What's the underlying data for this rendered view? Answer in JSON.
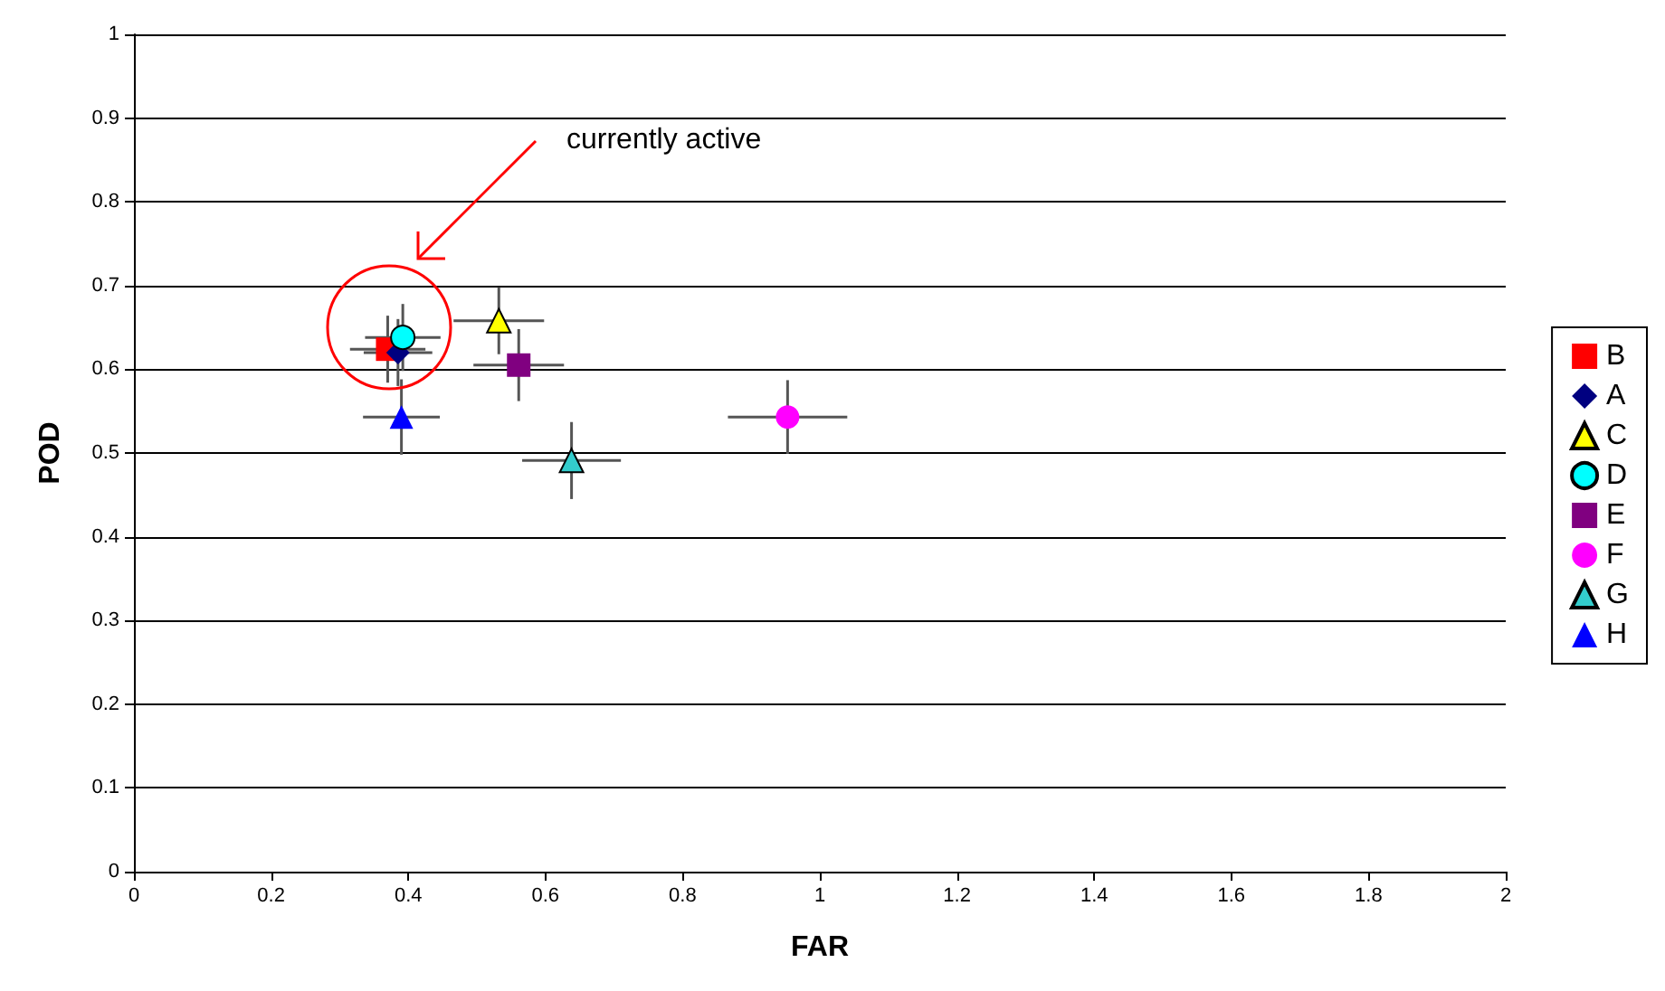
{
  "chart_data": {
    "type": "scatter",
    "xlabel": "FAR",
    "ylabel": "POD",
    "xlim": [
      0,
      2
    ],
    "ylim": [
      0,
      1
    ],
    "xticks": [
      0,
      0.2,
      0.4,
      0.6,
      0.8,
      1,
      1.2,
      1.4,
      1.6,
      1.8,
      2
    ],
    "yticks": [
      0,
      0.1,
      0.2,
      0.3,
      0.4,
      0.5,
      0.6,
      0.7,
      0.8,
      0.9,
      1
    ],
    "grid": "y",
    "legend": "right",
    "annotations": [
      "currently active"
    ],
    "series": [
      {
        "name": "B",
        "color": "#ff0000",
        "marker": "square",
        "x": [
          0.37
        ],
        "values": [
          0.624
        ],
        "xerrors": [
          0.055
        ],
        "errors": [
          0.04
        ]
      },
      {
        "name": "A",
        "color": "#000080",
        "marker": "diamond",
        "x": [
          0.385
        ],
        "values": [
          0.62
        ],
        "xerrors": [
          0.05
        ],
        "errors": [
          0.04
        ]
      },
      {
        "name": "C",
        "color": "#ffff00",
        "marker": "triangle",
        "x": [
          0.532
        ],
        "values": [
          0.658
        ],
        "xerrors": [
          0.066
        ],
        "errors": [
          0.04
        ]
      },
      {
        "name": "D",
        "color": "#00ffff",
        "marker": "circle",
        "x": [
          0.392
        ],
        "values": [
          0.638
        ],
        "xerrors": [
          0.055
        ],
        "errors": [
          0.04
        ]
      },
      {
        "name": "E",
        "color": "#800080",
        "marker": "square",
        "x": [
          0.561
        ],
        "values": [
          0.605
        ],
        "xerrors": [
          0.066
        ],
        "errors": [
          0.043
        ]
      },
      {
        "name": "F",
        "color": "#ff00ff",
        "marker": "circle",
        "x": [
          0.953
        ],
        "values": [
          0.543
        ],
        "xerrors": [
          0.087
        ],
        "errors": [
          0.044
        ]
      },
      {
        "name": "G",
        "color": "#33cccc",
        "marker": "triangle",
        "x": [
          0.638
        ],
        "values": [
          0.491
        ],
        "xerrors": [
          0.072
        ],
        "errors": [
          0.046
        ]
      },
      {
        "name": "H",
        "color": "#0000ff",
        "marker": "triangle",
        "x": [
          0.39
        ],
        "values": [
          0.543
        ],
        "xerrors": [
          0.056
        ],
        "errors": [
          0.045
        ]
      }
    ]
  }
}
